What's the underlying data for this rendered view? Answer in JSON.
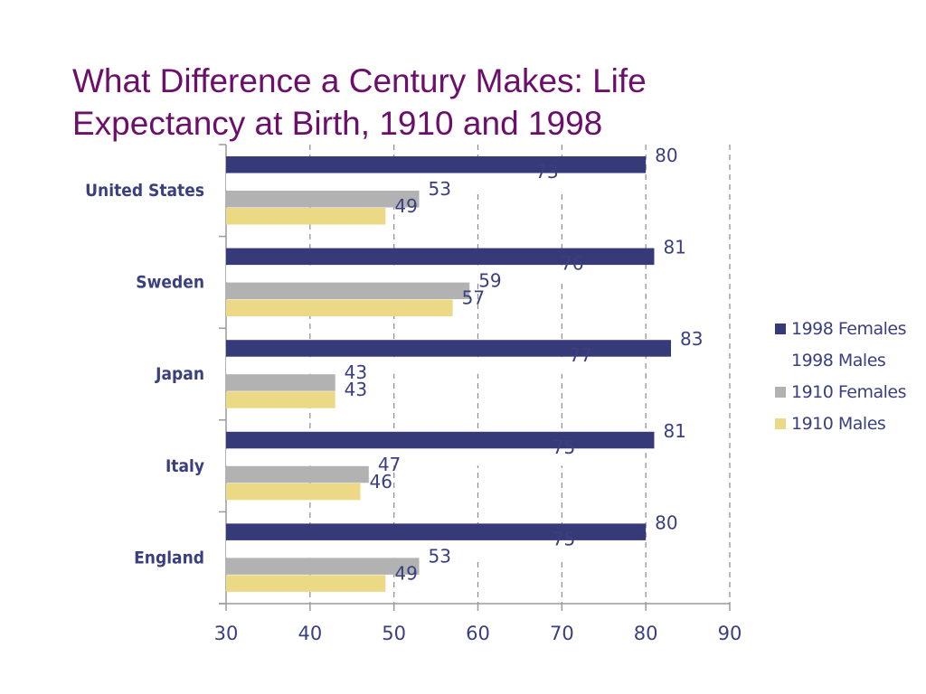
{
  "chart_data": {
    "type": "bar",
    "orientation": "horizontal",
    "title": "What Difference a Century Makes: Life Expectancy at Birth, 1910 and 1998",
    "title_lines": [
      "What Difference a Century Makes: Life",
      "Expectancy at Birth, 1910 and 1998"
    ],
    "categories": [
      "United States",
      "Sweden",
      "Japan",
      "Italy",
      "England"
    ],
    "series": [
      {
        "name": "1998 Females",
        "color": "#363a78",
        "values": [
          80,
          81,
          83,
          81,
          80
        ]
      },
      {
        "name": "1998 Males",
        "color": "#ffffff",
        "values": [
          73,
          76,
          77,
          75,
          75
        ]
      },
      {
        "name": "1910 Females",
        "color": "#b2b2b2",
        "values": [
          53,
          59,
          43,
          47,
          53
        ]
      },
      {
        "name": "1910 Males",
        "color": "#ecd985",
        "values": [
          49,
          57,
          43,
          46,
          49
        ]
      }
    ],
    "xlim": [
      30,
      90
    ],
    "xticks": [
      30,
      40,
      50,
      60,
      70,
      80,
      90
    ],
    "xlabel": "",
    "ylabel": "",
    "grid": "vertical-dashed",
    "legend_position": "right"
  },
  "colors": {
    "title": "#6b0f6b",
    "text": "#3a3f80",
    "axis": "#9a9a9a",
    "grid": "#8c8c8c"
  }
}
